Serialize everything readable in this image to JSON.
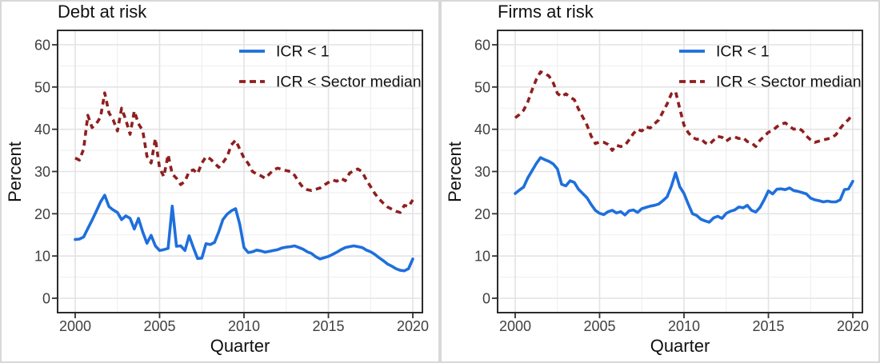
{
  "figure": {
    "background": "#ffffff",
    "edge_color": "#d8d8d8"
  },
  "colors": {
    "series_blue": "#1f6fdc",
    "series_red": "#8f1f1f",
    "panel_border": "#2b2b2b",
    "grid_major": "#e3e3e3",
    "grid_minor": "#efefef",
    "tick_mark": "#333333",
    "tick_label": "#404040",
    "text": "#111111"
  },
  "axes": {
    "y_label": "Percent",
    "x_label": "Quarter",
    "y_ticks": [
      0,
      10,
      20,
      30,
      40,
      50,
      60
    ],
    "y_minor": [
      5,
      15,
      25,
      35,
      45,
      55
    ],
    "x_ticks": [
      2000,
      2005,
      2010,
      2015,
      2020
    ],
    "x_minor": [
      2002.5,
      2007.5,
      2012.5,
      2017.5
    ]
  },
  "legend": {
    "position": "inside_top_right",
    "items": [
      {
        "label": "ICR < 1",
        "style": "solid",
        "color": "#1f6fdc"
      },
      {
        "label": "ICR < Sector median",
        "style": "dashed",
        "color": "#8f1f1f"
      }
    ]
  },
  "chart_data": [
    {
      "type": "line",
      "title": "Debt at risk",
      "xlabel": "Quarter",
      "ylabel": "Percent",
      "xlim": [
        2000,
        2020
      ],
      "ylim": [
        0,
        60
      ],
      "grid": true,
      "x_step": 0.25,
      "x_start": 2000.0,
      "series": [
        {
          "name": "ICR < 1",
          "style": "solid",
          "color": "#1f6fdc",
          "values": [
            13.9,
            14.0,
            14.5,
            16.5,
            18.5,
            20.6,
            22.8,
            24.4,
            21.7,
            20.9,
            20.3,
            18.6,
            19.5,
            18.9,
            16.4,
            18.9,
            15.7,
            13.0,
            14.9,
            12.4,
            11.3,
            11.5,
            11.8,
            21.8,
            12.3,
            12.4,
            11.3,
            14.8,
            12.0,
            9.4,
            9.5,
            12.9,
            12.7,
            13.2,
            15.7,
            18.6,
            19.9,
            20.7,
            21.2,
            17.5,
            12.0,
            10.8,
            11.0,
            11.4,
            11.2,
            10.9,
            11.1,
            11.3,
            11.5,
            11.9,
            12.1,
            12.2,
            12.4,
            12.0,
            11.6,
            11.0,
            10.6,
            9.8,
            9.3,
            9.6,
            9.9,
            10.4,
            10.9,
            11.5,
            12.0,
            12.2,
            12.4,
            12.2,
            12.0,
            11.4,
            11.0,
            10.4,
            9.6,
            8.9,
            8.1,
            7.6,
            7.0,
            6.6,
            6.5,
            7.0,
            9.3
          ]
        },
        {
          "name": "ICR < Sector median",
          "style": "dashed",
          "color": "#8f1f1f",
          "values": [
            33.2,
            32.7,
            35.3,
            43.3,
            40.4,
            41.3,
            42.9,
            48.6,
            43.9,
            42.2,
            39.6,
            45.0,
            42.2,
            38.8,
            44.3,
            41.3,
            39.7,
            33.6,
            32.0,
            37.8,
            30.8,
            28.8,
            34.0,
            29.4,
            28.4,
            26.9,
            27.7,
            30.0,
            30.4,
            29.5,
            32.0,
            33.5,
            33.0,
            32.0,
            31.0,
            32.1,
            33.5,
            36.3,
            37.4,
            35.3,
            33.2,
            31.9,
            30.0,
            29.4,
            29.0,
            28.4,
            29.4,
            30.4,
            30.8,
            30.5,
            30.2,
            30.0,
            29.1,
            27.5,
            26.2,
            25.7,
            25.5,
            25.8,
            26.1,
            26.8,
            27.4,
            28.0,
            27.7,
            28.4,
            27.8,
            29.6,
            30.2,
            30.6,
            29.9,
            28.0,
            26.4,
            24.8,
            23.5,
            22.5,
            21.6,
            21.1,
            20.6,
            20.3,
            22.0,
            21.7,
            23.3
          ]
        }
      ]
    },
    {
      "type": "line",
      "title": "Firms at risk",
      "xlabel": "Quarter",
      "ylabel": "Percent",
      "xlim": [
        2000,
        2020
      ],
      "ylim": [
        0,
        60
      ],
      "grid": true,
      "x_step": 0.25,
      "x_start": 2000.0,
      "series": [
        {
          "name": "ICR < 1",
          "style": "solid",
          "color": "#1f6fdc",
          "values": [
            24.8,
            25.6,
            26.3,
            28.5,
            30.2,
            31.9,
            33.3,
            32.8,
            32.4,
            31.8,
            30.6,
            27.0,
            26.6,
            27.8,
            27.4,
            25.8,
            24.8,
            23.8,
            22.2,
            20.8,
            20.1,
            19.8,
            20.5,
            20.8,
            20.2,
            20.5,
            19.7,
            20.7,
            20.9,
            20.3,
            21.2,
            21.5,
            21.8,
            22.0,
            22.3,
            23.1,
            24.0,
            26.5,
            29.7,
            26.4,
            24.8,
            22.3,
            20.0,
            19.6,
            18.7,
            18.3,
            18.0,
            19.0,
            19.4,
            18.9,
            20.1,
            20.6,
            20.9,
            21.6,
            21.4,
            22.0,
            20.8,
            20.4,
            21.5,
            23.3,
            25.4,
            24.7,
            25.8,
            25.9,
            25.7,
            26.1,
            25.5,
            25.3,
            25.0,
            24.7,
            23.7,
            23.3,
            23.1,
            22.8,
            23.0,
            22.8,
            22.8,
            23.3,
            25.7,
            25.9,
            27.7
          ]
        },
        {
          "name": "ICR < Sector median",
          "style": "dashed",
          "color": "#8f1f1f",
          "values": [
            42.7,
            43.5,
            44.5,
            46.5,
            49.3,
            51.8,
            53.6,
            53.2,
            52.6,
            51.0,
            48.5,
            47.7,
            48.4,
            47.6,
            47.0,
            44.8,
            42.9,
            41.0,
            38.4,
            36.6,
            37.0,
            36.9,
            36.4,
            35.0,
            36.2,
            35.9,
            36.2,
            37.5,
            39.0,
            40.0,
            39.6,
            40.6,
            40.3,
            41.3,
            42.2,
            44.1,
            46.0,
            48.4,
            48.9,
            44.9,
            41.0,
            39.2,
            38.1,
            37.6,
            37.8,
            36.8,
            36.4,
            37.4,
            38.3,
            38.1,
            37.2,
            37.9,
            38.2,
            37.8,
            38.0,
            37.1,
            36.8,
            35.9,
            37.4,
            38.3,
            39.3,
            39.7,
            40.6,
            41.2,
            41.5,
            40.7,
            40.0,
            40.3,
            39.7,
            38.4,
            37.5,
            36.9,
            37.2,
            37.5,
            37.7,
            38.0,
            38.7,
            40.2,
            41.4,
            42.3,
            43.6
          ]
        }
      ]
    }
  ]
}
